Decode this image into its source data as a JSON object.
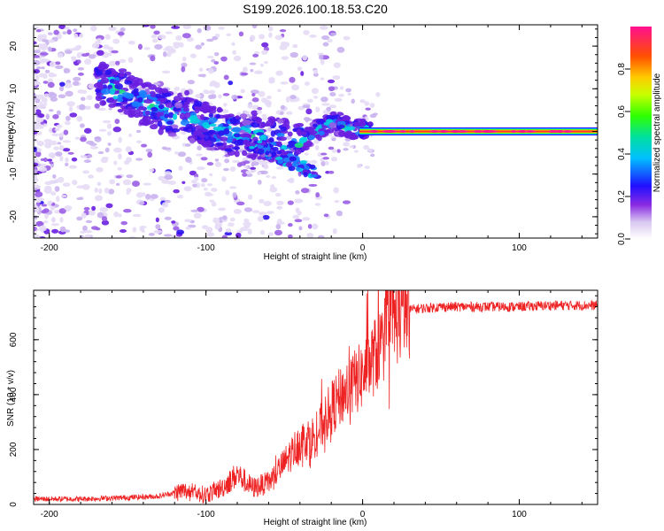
{
  "title": "S199.2026.100.18.53.C20",
  "chart_data": [
    {
      "type": "heatmap",
      "title": "S199.2026.100.18.53.C20",
      "xlabel": "Height of straight line (km)",
      "ylabel": "Frequency (Hz)",
      "xlim": [
        -210,
        150
      ],
      "ylim": [
        -25,
        25
      ],
      "xticks": [
        -200,
        -100,
        0,
        100
      ],
      "yticks": [
        -20,
        -10,
        0,
        10,
        20
      ],
      "colorbar": {
        "label": "Normalized spectral amplitude",
        "range": [
          0,
          1
        ],
        "ticks": [
          0.0,
          0.2,
          0.4,
          0.6,
          0.8
        ]
      },
      "ridge": {
        "description_points_x": [
          -165,
          -150,
          -130,
          -110,
          -90,
          -70,
          -55,
          -40,
          -30,
          -20,
          -10,
          0,
          10,
          150
        ],
        "description_points_y": [
          11,
          9,
          5,
          3,
          0,
          -1,
          -2,
          -3,
          0,
          2,
          1,
          0.5,
          0,
          0
        ]
      }
    },
    {
      "type": "line",
      "xlabel": "Height of straight line (km)",
      "ylabel": "SNR (10 * v/v)",
      "xlim": [
        -210,
        150
      ],
      "ylim": [
        0,
        780
      ],
      "xticks": [
        -200,
        -100,
        0,
        100
      ],
      "yticks": [
        0,
        200,
        400,
        600
      ],
      "series": [
        {
          "name": "SNR",
          "color": "#ee2222",
          "x": [
            -210,
            -180,
            -150,
            -130,
            -115,
            -100,
            -90,
            -80,
            -70,
            -60,
            -50,
            -40,
            -30,
            -20,
            -10,
            0,
            10,
            20,
            30,
            50,
            80,
            100,
            120,
            150
          ],
          "y": [
            20,
            20,
            25,
            30,
            50,
            35,
            60,
            110,
            60,
            80,
            150,
            230,
            250,
            350,
            420,
            470,
            560,
            670,
            710,
            720,
            720,
            720,
            725,
            725
          ]
        }
      ]
    }
  ]
}
